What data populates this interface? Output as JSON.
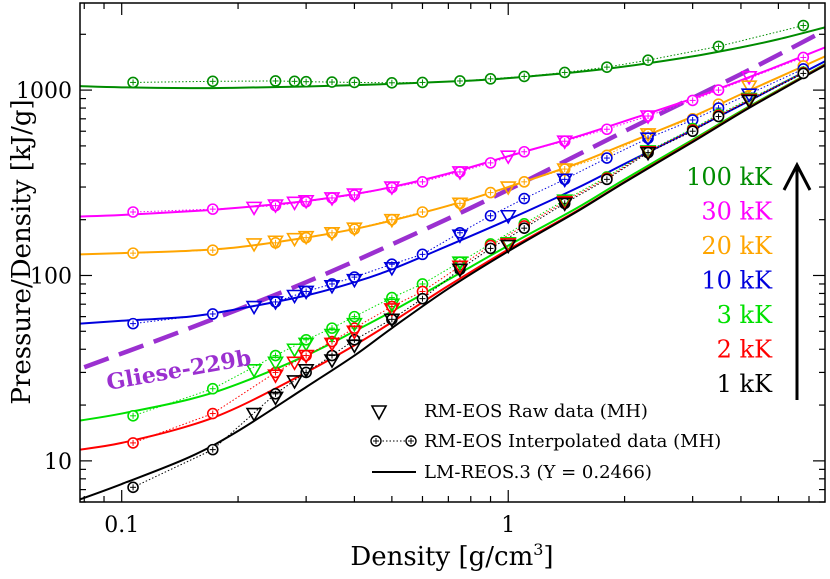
{
  "chart_data": {
    "type": "line",
    "title": "",
    "xlabel": "Density [g/cm",
    "xlabel_sup": "3",
    "xlabel_end": "]",
    "ylabel": "Pressure/Density [kJ/g]",
    "xscale": "log",
    "yscale": "log",
    "xlim": [
      0.078,
      6.6
    ],
    "ylim": [
      6.0,
      2950
    ],
    "x_ticks": [
      {
        "v": 0.1,
        "label": "0.1"
      },
      {
        "v": 1,
        "label": "1"
      }
    ],
    "y_ticks": [
      {
        "v": 10,
        "label": "10"
      },
      {
        "v": 100,
        "label": "100"
      },
      {
        "v": 1000,
        "label": "1000"
      }
    ],
    "grid": false,
    "legend": {
      "placement": "bottom-right",
      "entries": [
        {
          "label": "RM-EOS Raw data (MH)",
          "marker": "triangle-down"
        },
        {
          "label": "RM-EOS Interpolated data (MH)",
          "marker": "circle-hatched"
        },
        {
          "label": "LM-REOS.3 (Y = 0.2466)",
          "marker": "line"
        }
      ]
    },
    "series": [
      {
        "name": "100 kK",
        "color": "#008c00",
        "curve": [
          [
            0.078,
            1050
          ],
          [
            0.1,
            1035
          ],
          [
            0.15,
            1025
          ],
          [
            0.2,
            1030
          ],
          [
            0.3,
            1045
          ],
          [
            0.5,
            1080
          ],
          [
            0.8,
            1125
          ],
          [
            1.0,
            1160
          ],
          [
            1.5,
            1250
          ],
          [
            2.0,
            1340
          ],
          [
            3.0,
            1520
          ],
          [
            4.0,
            1700
          ],
          [
            5.0,
            1880
          ],
          [
            6.6,
            2180
          ]
        ],
        "interp": [
          [
            0.107,
            1100
          ],
          [
            0.172,
            1115
          ],
          [
            0.25,
            1120
          ],
          [
            0.28,
            1115
          ],
          [
            0.3,
            1110
          ],
          [
            0.35,
            1105
          ],
          [
            0.4,
            1100
          ],
          [
            0.5,
            1095
          ],
          [
            0.6,
            1100
          ],
          [
            0.75,
            1120
          ],
          [
            0.9,
            1150
          ],
          [
            1.1,
            1185
          ],
          [
            1.4,
            1245
          ],
          [
            1.8,
            1330
          ],
          [
            2.3,
            1450
          ],
          [
            3.5,
            1720
          ],
          [
            5.8,
            2230
          ]
        ],
        "raw": []
      },
      {
        "name": "30 kK",
        "color": "#ff00ff",
        "curve": [
          [
            0.078,
            208
          ],
          [
            0.1,
            212
          ],
          [
            0.15,
            222
          ],
          [
            0.2,
            232
          ],
          [
            0.3,
            252
          ],
          [
            0.4,
            275
          ],
          [
            0.5,
            300
          ],
          [
            0.7,
            355
          ],
          [
            1.0,
            440
          ],
          [
            1.5,
            560
          ],
          [
            2.0,
            680
          ],
          [
            3.0,
            900
          ],
          [
            4.0,
            1130
          ],
          [
            5.0,
            1350
          ],
          [
            6.6,
            1700
          ]
        ],
        "interp": [
          [
            0.107,
            220
          ],
          [
            0.172,
            228
          ],
          [
            0.25,
            238
          ],
          [
            0.3,
            250
          ],
          [
            0.35,
            262
          ],
          [
            0.4,
            272
          ],
          [
            0.5,
            298
          ],
          [
            0.6,
            320
          ],
          [
            0.75,
            362
          ],
          [
            0.9,
            405
          ],
          [
            1.1,
            465
          ],
          [
            1.4,
            530
          ],
          [
            1.8,
            615
          ],
          [
            2.3,
            725
          ],
          [
            3.0,
            880
          ],
          [
            3.5,
            1000
          ],
          [
            5.8,
            1500
          ]
        ],
        "raw": [
          [
            0.22,
            233
          ],
          [
            0.25,
            240
          ],
          [
            0.28,
            248
          ],
          [
            0.3,
            253
          ],
          [
            0.35,
            262
          ],
          [
            0.4,
            275
          ],
          [
            0.5,
            300
          ],
          [
            0.75,
            362
          ],
          [
            1.0,
            440
          ],
          [
            1.4,
            530
          ],
          [
            2.3,
            725
          ],
          [
            4.2,
            1180
          ]
        ]
      },
      {
        "name": "20 kK",
        "color": "#ffa500",
        "curve": [
          [
            0.078,
            130
          ],
          [
            0.1,
            132
          ],
          [
            0.15,
            136
          ],
          [
            0.2,
            142
          ],
          [
            0.3,
            160
          ],
          [
            0.4,
            178
          ],
          [
            0.5,
            198
          ],
          [
            0.7,
            238
          ],
          [
            1.0,
            300
          ],
          [
            1.5,
            400
          ],
          [
            2.0,
            510
          ],
          [
            3.0,
            720
          ],
          [
            4.0,
            950
          ],
          [
            5.0,
            1170
          ],
          [
            6.6,
            1520
          ]
        ],
        "interp": [
          [
            0.107,
            132
          ],
          [
            0.172,
            137
          ],
          [
            0.25,
            150
          ],
          [
            0.3,
            160
          ],
          [
            0.35,
            170
          ],
          [
            0.4,
            178
          ],
          [
            0.5,
            200
          ],
          [
            0.6,
            220
          ],
          [
            0.75,
            245
          ],
          [
            0.9,
            280
          ],
          [
            1.1,
            320
          ],
          [
            1.4,
            375
          ],
          [
            1.8,
            445
          ],
          [
            2.3,
            580
          ],
          [
            3.0,
            700
          ],
          [
            3.5,
            840
          ],
          [
            5.8,
            1350
          ]
        ],
        "raw": [
          [
            0.22,
            148
          ],
          [
            0.25,
            153
          ],
          [
            0.28,
            158
          ],
          [
            0.3,
            162
          ],
          [
            0.35,
            170
          ],
          [
            0.4,
            180
          ],
          [
            0.5,
            200
          ],
          [
            0.75,
            245
          ],
          [
            1.0,
            300
          ],
          [
            1.4,
            375
          ],
          [
            2.3,
            580
          ],
          [
            4.2,
            1050
          ]
        ]
      },
      {
        "name": "10 kK",
        "color": "#0000dd",
        "curve": [
          [
            0.078,
            55
          ],
          [
            0.1,
            57
          ],
          [
            0.15,
            60
          ],
          [
            0.2,
            66
          ],
          [
            0.3,
            78
          ],
          [
            0.4,
            92
          ],
          [
            0.5,
            108
          ],
          [
            0.7,
            145
          ],
          [
            1.0,
            200
          ],
          [
            1.5,
            295
          ],
          [
            2.0,
            400
          ],
          [
            3.0,
            610
          ],
          [
            4.0,
            830
          ],
          [
            5.0,
            1060
          ],
          [
            6.6,
            1430
          ]
        ],
        "interp": [
          [
            0.107,
            55
          ],
          [
            0.172,
            62
          ],
          [
            0.25,
            72
          ],
          [
            0.3,
            82
          ],
          [
            0.35,
            90
          ],
          [
            0.4,
            98
          ],
          [
            0.5,
            115
          ],
          [
            0.6,
            130
          ],
          [
            0.75,
            170
          ],
          [
            0.9,
            210
          ],
          [
            1.1,
            260
          ],
          [
            1.4,
            330
          ],
          [
            1.8,
            430
          ],
          [
            2.3,
            550
          ],
          [
            3.0,
            690
          ],
          [
            3.5,
            800
          ],
          [
            5.8,
            1300
          ]
        ],
        "raw": [
          [
            0.22,
            68
          ],
          [
            0.25,
            72
          ],
          [
            0.28,
            78
          ],
          [
            0.3,
            82
          ],
          [
            0.35,
            88
          ],
          [
            0.4,
            95
          ],
          [
            0.5,
            110
          ],
          [
            0.75,
            165
          ],
          [
            1.0,
            210
          ],
          [
            1.4,
            330
          ],
          [
            2.3,
            550
          ],
          [
            4.2,
            950
          ]
        ]
      },
      {
        "name": "3 kK",
        "color": "#00e000",
        "curve": [
          [
            0.078,
            16.5
          ],
          [
            0.1,
            18
          ],
          [
            0.15,
            21.5
          ],
          [
            0.2,
            26
          ],
          [
            0.3,
            37
          ],
          [
            0.4,
            50
          ],
          [
            0.5,
            64
          ],
          [
            0.7,
            95
          ],
          [
            1.0,
            145
          ],
          [
            1.5,
            230
          ],
          [
            2.0,
            330
          ],
          [
            3.0,
            540
          ],
          [
            4.0,
            770
          ],
          [
            5.0,
            1000
          ],
          [
            6.6,
            1380
          ]
        ],
        "interp": [
          [
            0.107,
            17.5
          ],
          [
            0.172,
            24.5
          ],
          [
            0.25,
            37
          ],
          [
            0.3,
            45
          ],
          [
            0.35,
            52
          ],
          [
            0.4,
            60
          ],
          [
            0.5,
            76
          ],
          [
            0.6,
            90
          ],
          [
            0.75,
            118
          ],
          [
            0.9,
            148
          ],
          [
            1.1,
            190
          ],
          [
            1.4,
            255
          ],
          [
            1.8,
            340
          ],
          [
            2.3,
            470
          ],
          [
            3.0,
            620
          ],
          [
            3.5,
            740
          ],
          [
            5.8,
            1250
          ]
        ],
        "raw": [
          [
            0.22,
            31
          ],
          [
            0.25,
            34
          ],
          [
            0.28,
            40
          ],
          [
            0.3,
            43
          ],
          [
            0.35,
            48
          ],
          [
            0.4,
            55
          ],
          [
            0.5,
            70
          ],
          [
            0.75,
            118
          ],
          [
            1.0,
            150
          ],
          [
            1.4,
            255
          ],
          [
            2.3,
            470
          ],
          [
            4.2,
            900
          ]
        ]
      },
      {
        "name": "2 kK",
        "color": "#ff0000",
        "curve": [
          [
            0.078,
            11.5
          ],
          [
            0.1,
            12.5
          ],
          [
            0.15,
            15.5
          ],
          [
            0.2,
            19.5
          ],
          [
            0.3,
            30
          ],
          [
            0.4,
            42
          ],
          [
            0.5,
            56
          ],
          [
            0.7,
            88
          ],
          [
            1.0,
            138
          ],
          [
            1.5,
            222
          ],
          [
            2.0,
            320
          ],
          [
            3.0,
            530
          ],
          [
            4.0,
            760
          ],
          [
            5.0,
            990
          ],
          [
            6.6,
            1370
          ]
        ],
        "interp": [
          [
            0.107,
            12.5
          ],
          [
            0.172,
            18
          ],
          [
            0.25,
            30
          ],
          [
            0.3,
            37
          ],
          [
            0.35,
            44
          ],
          [
            0.4,
            52
          ],
          [
            0.5,
            68
          ],
          [
            0.6,
            82
          ],
          [
            0.75,
            112
          ],
          [
            0.9,
            145
          ],
          [
            1.1,
            185
          ],
          [
            1.4,
            250
          ],
          [
            1.8,
            335
          ],
          [
            2.3,
            465
          ],
          [
            3.0,
            610
          ],
          [
            3.5,
            730
          ],
          [
            5.8,
            1240
          ]
        ],
        "raw": [
          [
            0.25,
            29
          ],
          [
            0.28,
            34
          ],
          [
            0.3,
            37
          ],
          [
            0.35,
            43
          ],
          [
            0.4,
            50
          ],
          [
            0.5,
            66
          ],
          [
            0.75,
            112
          ],
          [
            1.0,
            148
          ],
          [
            1.4,
            250
          ],
          [
            2.3,
            465
          ],
          [
            4.2,
            890
          ]
        ]
      },
      {
        "name": "1 kK",
        "color": "#000000",
        "curve": [
          [
            0.078,
            6.2
          ],
          [
            0.1,
            7.5
          ],
          [
            0.15,
            10.5
          ],
          [
            0.2,
            14.5
          ],
          [
            0.3,
            25
          ],
          [
            0.4,
            37
          ],
          [
            0.5,
            52
          ],
          [
            0.7,
            85
          ],
          [
            1.0,
            135
          ],
          [
            1.5,
            220
          ],
          [
            2.0,
            318
          ],
          [
            3.0,
            525
          ],
          [
            4.0,
            755
          ],
          [
            5.0,
            985
          ],
          [
            6.6,
            1360
          ]
        ],
        "interp": [
          [
            0.107,
            7.2
          ],
          [
            0.172,
            11.5
          ],
          [
            0.25,
            23
          ],
          [
            0.3,
            30
          ],
          [
            0.35,
            37
          ],
          [
            0.4,
            45
          ],
          [
            0.5,
            58
          ],
          [
            0.6,
            75
          ],
          [
            0.75,
            108
          ],
          [
            0.9,
            140
          ],
          [
            1.1,
            180
          ],
          [
            1.4,
            245
          ],
          [
            1.8,
            330
          ],
          [
            2.3,
            460
          ],
          [
            3.0,
            600
          ],
          [
            3.5,
            720
          ],
          [
            5.8,
            1230
          ]
        ],
        "raw": [
          [
            0.22,
            18
          ],
          [
            0.25,
            22
          ],
          [
            0.28,
            27
          ],
          [
            0.3,
            31
          ],
          [
            0.35,
            35
          ],
          [
            0.4,
            42
          ],
          [
            0.5,
            58
          ],
          [
            0.75,
            108
          ],
          [
            1.0,
            145
          ],
          [
            1.4,
            245
          ],
          [
            2.3,
            460
          ],
          [
            4.2,
            880
          ]
        ]
      }
    ],
    "reference_line": {
      "name": "Gliese-229b",
      "color": "#9b30d0",
      "points": [
        [
          0.08,
          32
        ],
        [
          0.15,
          52
        ],
        [
          0.3,
          92
        ],
        [
          0.6,
          175
        ],
        [
          1.0,
          290
        ],
        [
          2.0,
          600
        ],
        [
          4.0,
          1220
        ],
        [
          6.6,
          2100
        ]
      ]
    },
    "arrow": {
      "direction": "up",
      "meaning": "increasing temperature"
    }
  }
}
